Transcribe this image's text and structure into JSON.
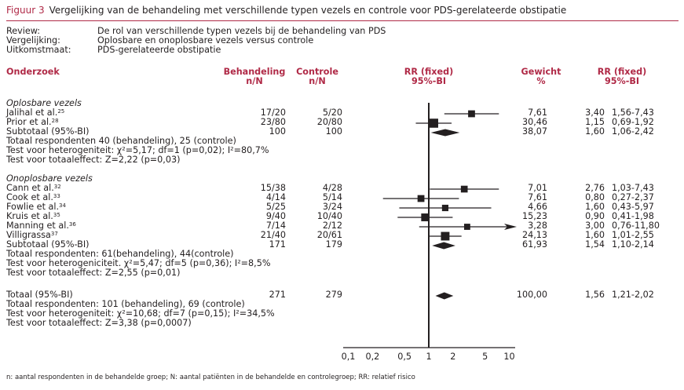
{
  "figure": {
    "label": "Figuur 3",
    "title": "Vergelijking van de behandeling met verschillende typen vezels en controle voor PDS-gerelateerde obstipatie"
  },
  "meta": [
    {
      "key": "Review:",
      "value": "De rol van verschillende typen vezels bij de behandeling van PDS"
    },
    {
      "key": "Vergelijking:",
      "value": "Oplosbare en onoplosbare vezels versus controle"
    },
    {
      "key": "Uitkomstmaat:",
      "value": "PDS-gerelateerde obstipatie"
    }
  ],
  "headers": {
    "study": "Onderzoek",
    "treatment": [
      "Behandeling",
      "n/N"
    ],
    "control": [
      "Controle",
      "n/N"
    ],
    "rr_plot": [
      "RR (fixed)",
      "95%-BI"
    ],
    "weight": [
      "Gewicht",
      "%"
    ],
    "rr_value": [
      "RR (fixed)",
      "95%-BI"
    ]
  },
  "footnote": "n: aantal respondenten in de behandelde groep; N: aantal patiënten in de behandelde en controlegroep; RR: relatief risico",
  "chart_data": {
    "type": "forest",
    "title": "Vergelijking van de behandeling met verschillende typen vezels en controle voor PDS-gerelateerde obstipatie",
    "xlabel": "RR (fixed) 95%-BI",
    "xscale": "log",
    "xlim": [
      0.1,
      10
    ],
    "xticks": [
      "0,1",
      "0,2",
      "0,5",
      "1",
      "2",
      "5",
      "10"
    ],
    "xtick_values": [
      0.1,
      0.2,
      0.5,
      1,
      2,
      5,
      10
    ],
    "reference_line": 1,
    "groups": [
      {
        "name": "Oplosbare vezels",
        "studies": [
          {
            "name": "Jalihal et al.",
            "ref": "25",
            "treatment": "17/20",
            "control": "5/20",
            "weight": "7,61",
            "rr": 3.4,
            "lo": 1.56,
            "hi": 7.43,
            "rr_text": "3,40",
            "ci_text": "1,56-7,43"
          },
          {
            "name": "Prior et al.",
            "ref": "28",
            "treatment": "23/80",
            "control": "20/80",
            "weight": "30,46",
            "rr": 1.15,
            "lo": 0.69,
            "hi": 1.92,
            "rr_text": "1,15",
            "ci_text": "0,69-1,92"
          }
        ],
        "subtotal": {
          "label": "Subtotaal (95%-BI)",
          "treatment": "100",
          "control": "100",
          "weight": "38,07",
          "rr": 1.6,
          "lo": 1.06,
          "hi": 2.42,
          "rr_text": "1,60",
          "ci_text": "1,06-2,42"
        },
        "notes": [
          "Totaal respondenten 40 (behandeling), 25 (controle)",
          "Test voor heterogeniteit: χ²=5,17; df=1 (p=0,02); I²=80,7%",
          "Test voor totaaleffect: Z=2,22 (p=0,03)"
        ]
      },
      {
        "name": "Onoplosbare vezels",
        "studies": [
          {
            "name": "Cann et al.",
            "ref": "32",
            "treatment": "15/38",
            "control": "4/28",
            "weight": "7,01",
            "rr": 2.76,
            "lo": 1.03,
            "hi": 7.43,
            "rr_text": "2,76",
            "ci_text": "1,03-7,43"
          },
          {
            "name": "Cook et al.",
            "ref": "33",
            "treatment": "4/14",
            "control": "5/14",
            "weight": "7,61",
            "rr": 0.8,
            "lo": 0.27,
            "hi": 2.37,
            "rr_text": "0,80",
            "ci_text": "0,27-2,37"
          },
          {
            "name": "Fowlie et al.",
            "ref": "34",
            "treatment": "5/25",
            "control": "3/24",
            "weight": "4,66",
            "rr": 1.6,
            "lo": 0.43,
            "hi": 5.97,
            "rr_text": "1,60",
            "ci_text": "0,43-5,97"
          },
          {
            "name": "Kruis et al.",
            "ref": "35",
            "treatment": "9/40",
            "control": "10/40",
            "weight": "15,23",
            "rr": 0.9,
            "lo": 0.41,
            "hi": 1.98,
            "rr_text": "0,90",
            "ci_text": "0,41-1,98"
          },
          {
            "name": "Manning et al.",
            "ref": "36",
            "treatment": "7/14",
            "control": "2/12",
            "weight": "3,28",
            "rr": 3.0,
            "lo": 0.76,
            "hi": 11.8,
            "rr_text": "3,00",
            "ci_text": "0,76-11,80"
          },
          {
            "name": "Villigrassa",
            "ref": "37",
            "treatment": "21/40",
            "control": "20/61",
            "weight": "24,13",
            "rr": 1.6,
            "lo": 1.01,
            "hi": 2.55,
            "rr_text": "1,60",
            "ci_text": "1,01-2,55"
          }
        ],
        "subtotal": {
          "label": "Subtotaal (95%-BI)",
          "treatment": "171",
          "control": "179",
          "weight": "61,93",
          "rr": 1.54,
          "lo": 1.1,
          "hi": 2.14,
          "rr_text": "1,54",
          "ci_text": "1,10-2,14"
        },
        "notes": [
          "Totaal respondenten: 61(behandeling), 44(controle)",
          "Test voor heterogeniciteit. χ²=5,47; df=5 (p=0,36); I²=8,5%",
          "Test voor totaaleffect: Z=2,55 (p=0,01)"
        ]
      }
    ],
    "total": {
      "label": "Totaal (95%-BI)",
      "treatment": "271",
      "control": "279",
      "weight": "100,00",
      "rr": 1.56,
      "lo": 1.21,
      "hi": 2.02,
      "rr_text": "1,56",
      "ci_text": "1,21-2,02",
      "notes": [
        "Totaal respondenten: 101 (behandeling), 69 (controle)",
        "Test voor heterogeniteit: χ²=10,68; df=7 (p=0,15); I²=34,5%",
        "Test voor totaaleffect: Z=3,38 (p=0,0007)"
      ]
    }
  },
  "colors": {
    "accent": "#b02a47",
    "text": "#231f20",
    "marker": "#231f20"
  }
}
